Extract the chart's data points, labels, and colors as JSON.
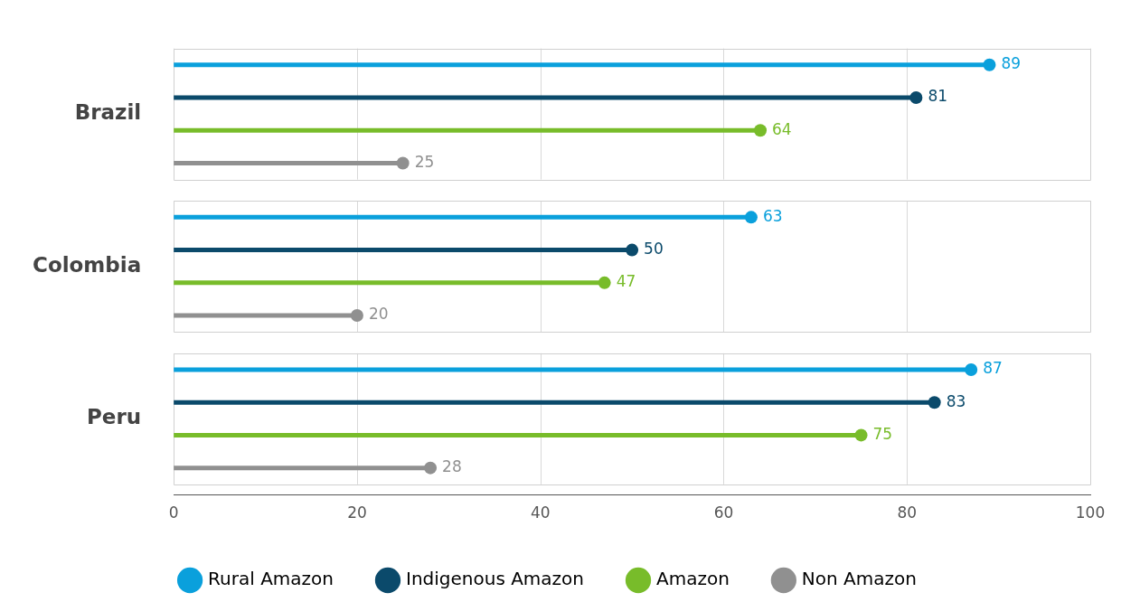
{
  "chart_data": {
    "type": "lollipop",
    "orientation": "horizontal",
    "categories": [
      "Brazil",
      "Colombia",
      "Peru"
    ],
    "series": [
      {
        "name": "Rural Amazon",
        "color": "#0aa0dc",
        "values": [
          89,
          63,
          87
        ]
      },
      {
        "name": "Indigenous Amazon",
        "color": "#0b4a6b",
        "values": [
          81,
          50,
          83
        ]
      },
      {
        "name": "Amazon",
        "color": "#78bc2a",
        "values": [
          64,
          47,
          75
        ]
      },
      {
        "name": "Non Amazon",
        "color": "#909090",
        "values": [
          25,
          20,
          28
        ]
      }
    ],
    "xlim": [
      0,
      100
    ],
    "xticks": [
      0,
      20,
      40,
      60,
      80,
      100
    ],
    "grid": "x",
    "legend": "bottom",
    "data_labels": true,
    "marker": "circle"
  }
}
